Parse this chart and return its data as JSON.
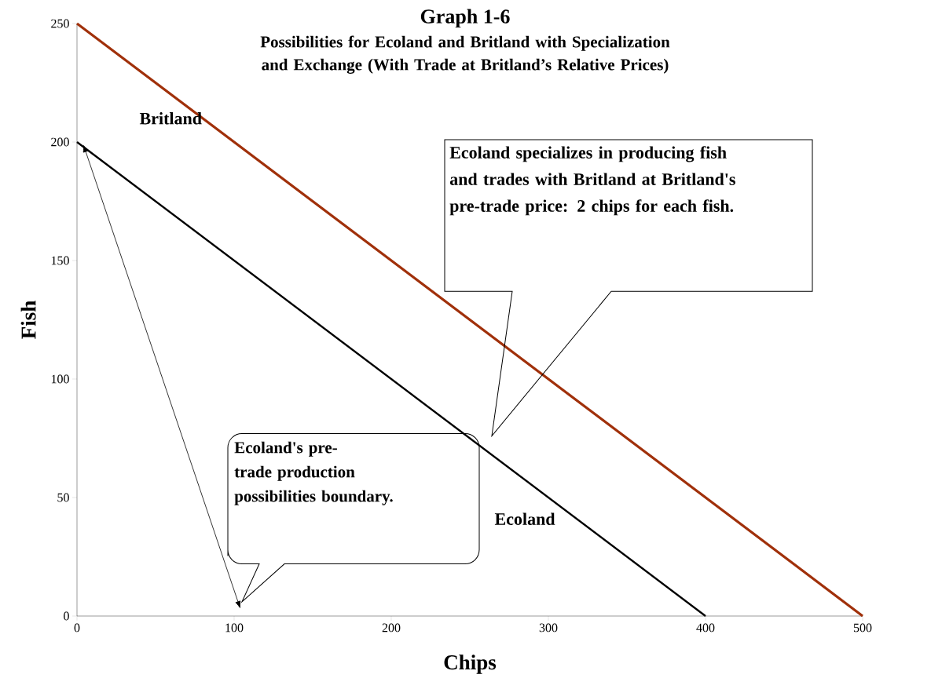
{
  "chart_data": {
    "type": "line",
    "title": "Graph 1-6",
    "subtitle": "Possibilities for Ecoland and Britland with Specialization and Exchange (With Trade at Britland’s Relative Prices)",
    "xlabel": "Chips",
    "ylabel": "Fish",
    "series": [
      {
        "name": "Britland",
        "color": "#a0300a",
        "x": [
          0,
          500
        ],
        "values": [
          250,
          0
        ]
      },
      {
        "name": "Ecoland",
        "color": "#000000",
        "x": [
          0,
          400
        ],
        "values": [
          200,
          0
        ]
      }
    ],
    "xlim": [
      0,
      500
    ],
    "xticks": [
      0,
      100,
      200,
      300,
      400,
      500
    ],
    "ylim": [
      0,
      250
    ],
    "yticks": [
      0,
      50,
      100,
      150,
      200,
      250
    ],
    "grid": false,
    "legend": false,
    "marker": "none",
    "line_style": "solid",
    "annotations": [
      "Ecoland specializes in producing fish and trades with Britland at Britland's pre-trade price:  2 chips for each fish.",
      "Ecoland's pre-trade production possibilities boundary."
    ]
  }
}
